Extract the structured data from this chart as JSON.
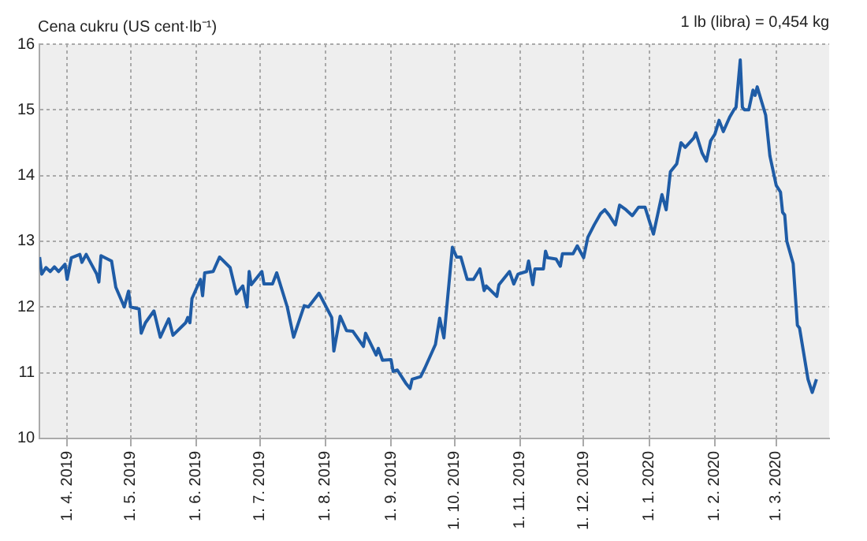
{
  "chart_data": {
    "type": "line",
    "ylabel": "Cena cukru (US cent·lb⁻¹)",
    "annotations": [
      "1 lb (libra) = 0,454 kg"
    ],
    "x": [
      "2019-03-19",
      "2019-03-20",
      "2019-03-22",
      "2019-03-24",
      "2019-03-26",
      "2019-03-28",
      "2019-03-31",
      "2019-04-01",
      "2019-04-03",
      "2019-04-07",
      "2019-04-08",
      "2019-04-10",
      "2019-04-15",
      "2019-04-16",
      "2019-04-17",
      "2019-04-22",
      "2019-04-24",
      "2019-04-28",
      "2019-04-30",
      "2019-05-01",
      "2019-05-05",
      "2019-05-06",
      "2019-05-08",
      "2019-05-12",
      "2019-05-15",
      "2019-05-19",
      "2019-05-21",
      "2019-05-27",
      "2019-05-28",
      "2019-05-29",
      "2019-05-30",
      "2019-06-03",
      "2019-06-04",
      "2019-06-05",
      "2019-06-09",
      "2019-06-12",
      "2019-06-17",
      "2019-06-20",
      "2019-06-23",
      "2019-06-25",
      "2019-06-26",
      "2019-06-27",
      "2019-07-02",
      "2019-07-03",
      "2019-07-07",
      "2019-07-09",
      "2019-07-14",
      "2019-07-17",
      "2019-07-22",
      "2019-07-24",
      "2019-07-29",
      "2019-08-04",
      "2019-08-05",
      "2019-08-08",
      "2019-08-11",
      "2019-08-14",
      "2019-08-19",
      "2019-08-20",
      "2019-08-25",
      "2019-08-26",
      "2019-08-28",
      "2019-09-01",
      "2019-09-02",
      "2019-09-04",
      "2019-09-08",
      "2019-09-10",
      "2019-09-11",
      "2019-09-15",
      "2019-09-17",
      "2019-09-22",
      "2019-09-24",
      "2019-09-26",
      "2019-09-30",
      "2019-10-02",
      "2019-10-04",
      "2019-10-07",
      "2019-10-10",
      "2019-10-13",
      "2019-10-15",
      "2019-10-16",
      "2019-10-21",
      "2019-10-22",
      "2019-10-27",
      "2019-10-29",
      "2019-10-31",
      "2019-11-04",
      "2019-11-05",
      "2019-11-07",
      "2019-11-08",
      "2019-11-12",
      "2019-11-13",
      "2019-11-14",
      "2019-11-18",
      "2019-11-20",
      "2019-11-21",
      "2019-11-26",
      "2019-11-28",
      "2019-12-01",
      "2019-12-03",
      "2019-12-06",
      "2019-12-09",
      "2019-12-11",
      "2019-12-13",
      "2019-12-16",
      "2019-12-18",
      "2019-12-21",
      "2019-12-24",
      "2019-12-27",
      "2019-12-30",
      "2020-01-03",
      "2020-01-07",
      "2020-01-09",
      "2020-01-11",
      "2020-01-14",
      "2020-01-16",
      "2020-01-18",
      "2020-01-22",
      "2020-01-23",
      "2020-01-26",
      "2020-01-28",
      "2020-01-30",
      "2020-02-01",
      "2020-02-03",
      "2020-02-05",
      "2020-02-08",
      "2020-02-10",
      "2020-02-11",
      "2020-02-13",
      "2020-02-14",
      "2020-02-15",
      "2020-02-17",
      "2020-02-19",
      "2020-02-20",
      "2020-02-21",
      "2020-02-25",
      "2020-02-27",
      "2020-03-01",
      "2020-03-03",
      "2020-03-04",
      "2020-03-05",
      "2020-03-06",
      "2020-03-09",
      "2020-03-11",
      "2020-03-12",
      "2020-03-16",
      "2020-03-18",
      "2020-03-20"
    ],
    "series": [
      {
        "color": "#1f5ca6",
        "values": [
          12.76,
          12.5,
          12.6,
          12.54,
          12.61,
          12.54,
          12.65,
          12.42,
          12.75,
          12.8,
          12.68,
          12.8,
          12.5,
          12.38,
          12.78,
          12.7,
          12.3,
          12.0,
          12.24,
          12.0,
          11.97,
          11.6,
          11.76,
          11.94,
          11.54,
          11.82,
          11.57,
          11.76,
          11.84,
          11.76,
          12.13,
          12.42,
          12.17,
          12.52,
          12.54,
          12.76,
          12.6,
          12.2,
          12.32,
          12.0,
          12.54,
          12.34,
          12.54,
          12.35,
          12.35,
          12.52,
          12.0,
          11.54,
          12.02,
          12.0,
          12.21,
          11.84,
          11.33,
          11.86,
          11.64,
          11.63,
          11.4,
          11.6,
          11.27,
          11.37,
          11.19,
          11.2,
          11.02,
          11.04,
          10.84,
          10.76,
          10.9,
          10.94,
          11.07,
          11.43,
          11.83,
          11.53,
          12.91,
          12.76,
          12.76,
          12.42,
          12.42,
          12.58,
          12.25,
          12.32,
          12.16,
          12.34,
          12.54,
          12.35,
          12.5,
          12.54,
          12.7,
          12.34,
          12.58,
          12.58,
          12.85,
          12.75,
          12.73,
          12.62,
          12.81,
          12.81,
          12.93,
          12.75,
          13.06,
          13.25,
          13.42,
          13.48,
          13.4,
          13.25,
          13.55,
          13.48,
          13.39,
          13.52,
          13.52,
          13.11,
          13.71,
          13.48,
          14.06,
          14.18,
          14.5,
          14.43,
          14.57,
          14.65,
          14.34,
          14.22,
          14.53,
          14.63,
          14.84,
          14.67,
          14.89,
          15.0,
          15.04,
          15.76,
          15.04,
          15.0,
          15.0,
          15.3,
          15.22,
          15.35,
          14.92,
          14.3,
          13.85,
          13.75,
          13.44,
          13.4,
          13.0,
          12.66,
          11.72,
          11.68,
          10.9,
          10.7,
          10.9
        ]
      }
    ],
    "xlim": [
      "2019-03-19",
      "2020-03-26"
    ],
    "xticks": [
      {
        "value": "2019-04-01",
        "label": "1. 4. 2019"
      },
      {
        "value": "2019-05-01",
        "label": "1. 5. 2019"
      },
      {
        "value": "2019-06-01",
        "label": "1. 6. 2019"
      },
      {
        "value": "2019-07-01",
        "label": "1. 7. 2019"
      },
      {
        "value": "2019-08-01",
        "label": "1. 8. 2019"
      },
      {
        "value": "2019-09-01",
        "label": "1. 9. 2019"
      },
      {
        "value": "2019-10-01",
        "label": "1. 10. 2019"
      },
      {
        "value": "2019-11-01",
        "label": "1. 11. 2019"
      },
      {
        "value": "2019-12-01",
        "label": "1. 12. 2019"
      },
      {
        "value": "2020-01-01",
        "label": "1. 1. 2020"
      },
      {
        "value": "2020-02-01",
        "label": "1. 2. 2020"
      },
      {
        "value": "2020-03-01",
        "label": "1. 3. 2020"
      }
    ],
    "ylim": [
      10,
      16
    ],
    "yticks": [
      10,
      11,
      12,
      13,
      14,
      15,
      16
    ],
    "grid": true,
    "marker": "none",
    "line_style": "solid",
    "legend": false
  }
}
